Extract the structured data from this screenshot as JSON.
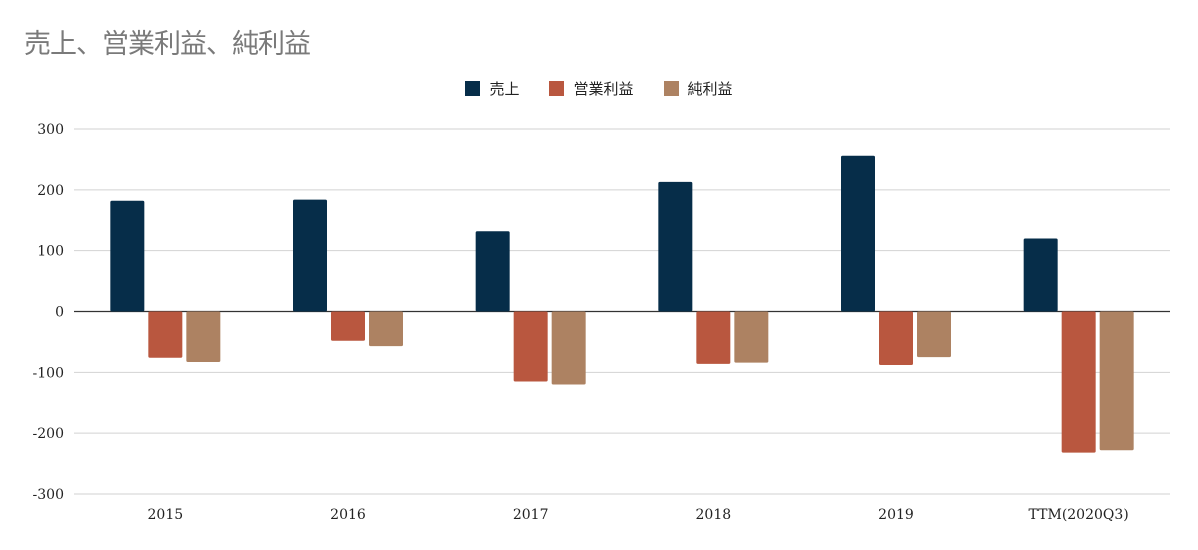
{
  "chart_data": {
    "type": "bar",
    "title": "売上、営業利益、純利益",
    "xlabel": "",
    "ylabel": "",
    "categories": [
      "2015",
      "2016",
      "2017",
      "2018",
      "2019",
      "TTM(2020Q3)"
    ],
    "series": [
      {
        "name": "売上",
        "color": "#062d49",
        "values": [
          182,
          184,
          132,
          213,
          256,
          120
        ]
      },
      {
        "name": "営業利益",
        "color": "#b9573f",
        "values": [
          -76,
          -48,
          -115,
          -86,
          -88,
          -232
        ]
      },
      {
        "name": "純利益",
        "color": "#ad8262",
        "values": [
          -83,
          -57,
          -120,
          -84,
          -75,
          -228
        ]
      }
    ],
    "ylim": [
      -300,
      300
    ],
    "yticks": [
      300,
      200,
      100,
      0,
      -100,
      -200,
      -300
    ],
    "grid": true,
    "legend_position": "top-center"
  }
}
